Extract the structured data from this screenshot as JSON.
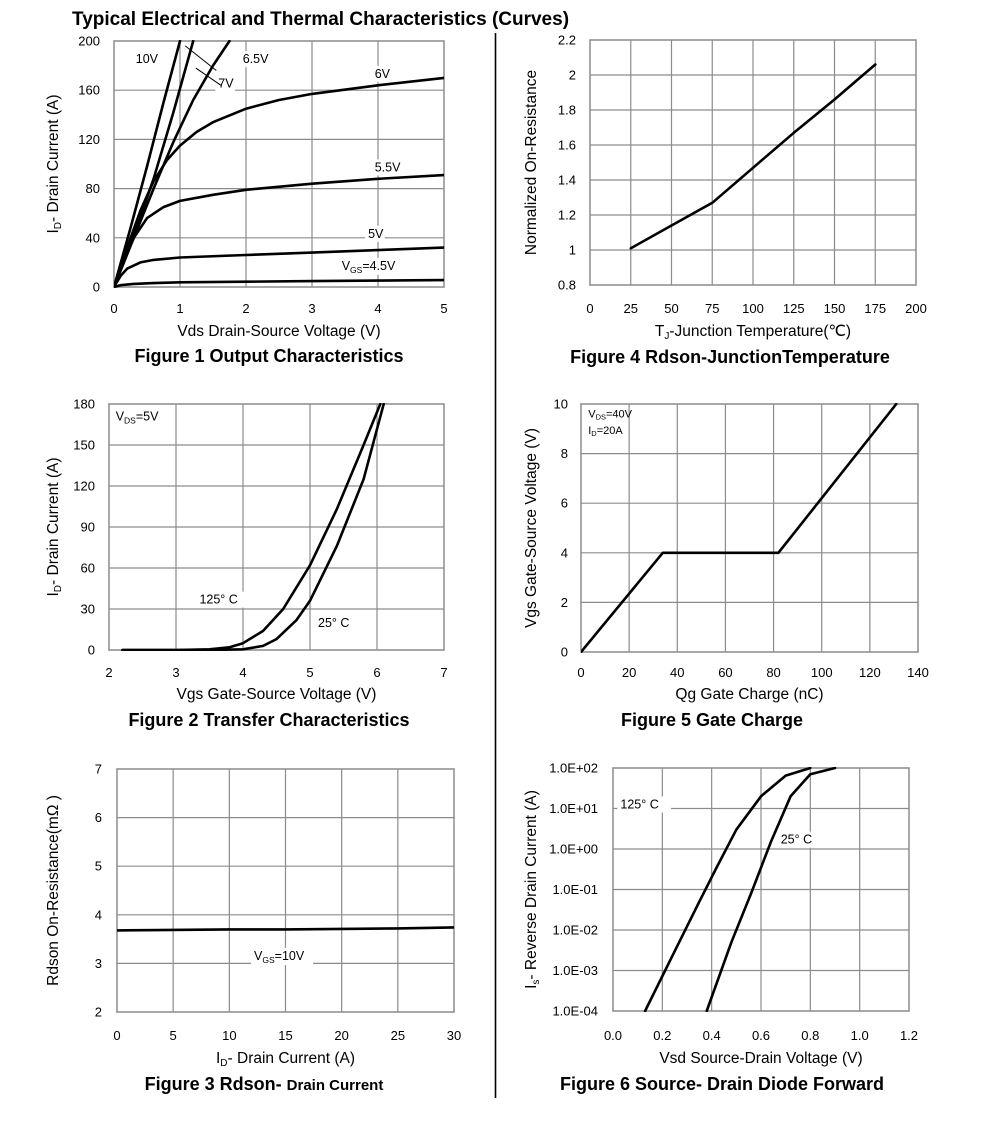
{
  "page_title": "Typical Electrical and Thermal Characteristics (Curves)",
  "chart_data": [
    {
      "id": "fig1",
      "type": "line",
      "caption": "Figure 1 Output Characteristics",
      "xlabel": "Vds Drain-Source Voltage (V)",
      "ylabel": "I_D- Drain Current (A)",
      "xlim": [
        0,
        5
      ],
      "ylim": [
        0,
        200
      ],
      "xticks": [
        0,
        1,
        2,
        3,
        4,
        5
      ],
      "yticks": [
        0,
        40,
        80,
        120,
        160,
        200
      ],
      "grid": true,
      "series": [
        {
          "name": "10V",
          "x": [
            0,
            0.25,
            0.5,
            0.75,
            1.0
          ],
          "y": [
            0,
            48,
            98,
            150,
            200
          ]
        },
        {
          "name": "7V",
          "x": [
            0,
            0.3,
            0.6,
            0.9,
            1.2
          ],
          "y": [
            0,
            42,
            88,
            142,
            200
          ]
        },
        {
          "name": "6.5V",
          "x": [
            0,
            0.3,
            0.6,
            0.9,
            1.2,
            1.5,
            1.75
          ],
          "y": [
            0,
            40,
            80,
            118,
            152,
            180,
            200
          ]
        },
        {
          "name": "6V",
          "x": [
            0,
            0.2,
            0.4,
            0.6,
            0.8,
            1.0,
            1.25,
            1.5,
            2.0,
            2.5,
            3.0,
            4.0,
            5.0
          ],
          "y": [
            0,
            32,
            62,
            86,
            103,
            115,
            126,
            134,
            145,
            152,
            157,
            164,
            170
          ]
        },
        {
          "name": "5.5V",
          "x": [
            0,
            0.15,
            0.3,
            0.5,
            0.75,
            1.0,
            1.5,
            2.0,
            3.0,
            4.0,
            5.0
          ],
          "y": [
            0,
            22,
            40,
            56,
            65,
            70,
            75,
            79,
            84,
            88,
            91
          ]
        },
        {
          "name": "5V",
          "x": [
            0,
            0.1,
            0.2,
            0.4,
            0.6,
            1.0,
            2.0,
            3.0,
            4.0,
            5.0
          ],
          "y": [
            0,
            9,
            15,
            20,
            22,
            24,
            26,
            28,
            30,
            32
          ]
        },
        {
          "name": "4.5V",
          "x": [
            0,
            0.1,
            0.3,
            0.6,
            1.0,
            2.0,
            3.0,
            4.0,
            5.0
          ],
          "y": [
            0,
            1.5,
            2.5,
            3.2,
            3.8,
            4.3,
            4.8,
            5.2,
            5.6
          ]
        }
      ],
      "labels": [
        {
          "text": "10V",
          "x": 0.33,
          "y": 182
        },
        {
          "text": "6.5V",
          "x": 1.95,
          "y": 182
        },
        {
          "text": "7V",
          "x": 1.58,
          "y": 162
        },
        {
          "text": "6V",
          "x": 3.95,
          "y": 170
        },
        {
          "text": "5.5V",
          "x": 3.95,
          "y": 94
        },
        {
          "text": "5V",
          "x": 3.85,
          "y": 40
        }
      ],
      "label_gs": {
        "prefix": "V",
        "sub": "GS",
        "suffix": "=4.5V",
        "x": 3.45,
        "y": 14
      }
    },
    {
      "id": "fig2",
      "type": "line",
      "caption": "Figure 2 Transfer Characteristics",
      "xlabel": "Vgs Gate-Source Voltage (V)",
      "ylabel": "I_D- Drain Current (A)",
      "xlim": [
        2,
        7
      ],
      "ylim": [
        0,
        180
      ],
      "xticks": [
        2,
        3,
        4,
        5,
        6,
        7
      ],
      "yticks": [
        0,
        30,
        60,
        90,
        120,
        150,
        180
      ],
      "grid": true,
      "series": [
        {
          "name": "125° C",
          "x": [
            2.2,
            3.0,
            3.5,
            3.8,
            4.0,
            4.3,
            4.6,
            5.0,
            5.4,
            5.8,
            6.05
          ],
          "y": [
            0,
            0,
            0.5,
            2,
            5,
            14,
            30,
            62,
            103,
            150,
            180
          ]
        },
        {
          "name": "25° C",
          "x": [
            2.2,
            3.5,
            4.0,
            4.3,
            4.5,
            4.8,
            5.0,
            5.4,
            5.8,
            6.1
          ],
          "y": [
            0,
            0,
            0.5,
            3,
            8,
            22,
            36,
            76,
            125,
            180
          ]
        }
      ],
      "labels": [
        {
          "text": "125°  C",
          "x": 3.35,
          "y": 34
        },
        {
          "text": "25°  C",
          "x": 5.12,
          "y": 17
        }
      ],
      "label_ds": {
        "prefix": "V",
        "sub": "DS",
        "suffix": "=5V",
        "x": 2.1,
        "y": 168
      }
    },
    {
      "id": "fig3",
      "type": "line",
      "caption": "Figure 3 Rdson- ",
      "caption_small": "Drain Current",
      "xlabel": "I_D- Drain Current (A)",
      "ylabel": "Rdson On-Resistance(mΩ )",
      "xlim": [
        0,
        30
      ],
      "ylim": [
        2,
        7
      ],
      "xticks": [
        0,
        5,
        10,
        15,
        20,
        25,
        30
      ],
      "yticks": [
        2,
        3,
        4,
        5,
        6,
        7
      ],
      "grid": true,
      "series": [
        {
          "name": "V_GS=10V",
          "x": [
            0,
            5,
            10,
            15,
            20,
            25,
            30
          ],
          "y": [
            3.68,
            3.69,
            3.7,
            3.7,
            3.71,
            3.72,
            3.74
          ]
        }
      ],
      "label_gs": {
        "prefix": "V",
        "sub": "GS",
        "suffix": "=10V",
        "x": 12.2,
        "y": 3.07
      }
    },
    {
      "id": "fig4",
      "type": "line",
      "caption": "Figure 4 Rdson-JunctionTemperature",
      "xlabel": "T_J-Junction Temperature(℃)",
      "ylabel": "Normalized On-Resistance",
      "xlim": [
        0,
        200
      ],
      "ylim": [
        0.8,
        2.2
      ],
      "xticks": [
        0,
        25,
        50,
        75,
        100,
        125,
        150,
        175,
        200
      ],
      "yticks": [
        "0.8",
        "1",
        "1.2",
        "1.4",
        "1.6",
        "1.8",
        "2",
        "2.2"
      ],
      "grid": true,
      "series": [
        {
          "name": "Rdson",
          "x": [
            25,
            50,
            75,
            100,
            125,
            150,
            175
          ],
          "y": [
            1.01,
            1.14,
            1.27,
            1.47,
            1.67,
            1.86,
            2.06
          ]
        }
      ]
    },
    {
      "id": "fig5",
      "type": "line",
      "caption": "Figure 5 Gate Charge",
      "xlabel": "Qg Gate Charge (nC)",
      "ylabel": "Vgs Gate-Source Voltage (V)",
      "xlim": [
        0,
        140
      ],
      "ylim": [
        0,
        10
      ],
      "xticks": [
        0,
        20,
        40,
        60,
        80,
        100,
        120,
        140
      ],
      "yticks": [
        0,
        2,
        4,
        6,
        8,
        10
      ],
      "grid": true,
      "series": [
        {
          "name": "Vgs",
          "x": [
            0,
            34,
            82,
            131
          ],
          "y": [
            0,
            4,
            4,
            10
          ]
        }
      ],
      "label_ds": {
        "prefix": "V",
        "sub": "DS",
        "suffix": "=40V",
        "x": 3,
        "y": 9.45
      },
      "label_d": {
        "prefix": "I",
        "sub": "D",
        "suffix": "=20A",
        "x": 3,
        "y": 8.8
      }
    },
    {
      "id": "fig6",
      "type": "line",
      "caption": "Figure 6 Source- Drain Diode Forward",
      "xlabel": "Vsd Source-Drain Voltage (V)",
      "ylabel": "I_s- Reverse Drain Current (A)",
      "xlim": [
        0,
        1.2
      ],
      "ylim": [
        -4,
        2
      ],
      "yscale": "log",
      "xticks": [
        "0.0",
        "0.2",
        "0.4",
        "0.6",
        "0.8",
        "1.0",
        "1.2"
      ],
      "yticks": [
        "1.0E-04",
        "1.0E-03",
        "1.0E-02",
        "1.0E-01",
        "1.0E+00",
        "1.0E+01",
        "1.0E+02"
      ],
      "grid": true,
      "series": [
        {
          "name": "125°  C",
          "x": [
            0.13,
            0.25,
            0.35,
            0.42,
            0.5,
            0.6,
            0.7,
            0.8
          ],
          "y": [
            0.0001,
            0.003,
            0.05,
            0.35,
            3,
            20,
            65,
            100
          ]
        },
        {
          "name": "25°  C",
          "x": [
            0.38,
            0.48,
            0.56,
            0.64,
            0.72,
            0.8,
            0.9
          ],
          "y": [
            0.0001,
            0.005,
            0.08,
            1.5,
            20,
            70,
            100
          ]
        }
      ],
      "labels": [
        {
          "text": "125°  C",
          "x": 0.03,
          "y": 1.0
        },
        {
          "text": "25°  C",
          "x": 0.68,
          "y": 0.13
        }
      ]
    }
  ]
}
